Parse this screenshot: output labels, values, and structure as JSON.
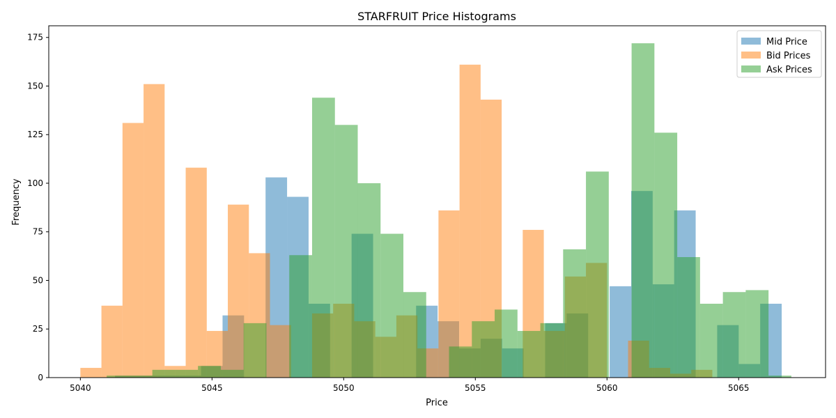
{
  "chart_data": {
    "type": "bar",
    "title": "STARFRUIT Price Histograms",
    "xlabel": "Price",
    "ylabel": "Frequency",
    "xlim": [
      5038.8,
      5068.3
    ],
    "ylim": [
      0,
      181
    ],
    "xticks": [
      5040,
      5045,
      5050,
      5055,
      5060,
      5065
    ],
    "yticks": [
      0,
      25,
      50,
      75,
      100,
      125,
      150,
      175
    ],
    "grid": false,
    "legend": "upper-right",
    "series": [
      {
        "name": "Mid Price",
        "color": "#1f77b4",
        "opacity": 0.5,
        "bin_start": 5040.5,
        "bin_width": 0.8167,
        "values": [
          0,
          1,
          1,
          1,
          1,
          6,
          32,
          0,
          103,
          93,
          38,
          0,
          74,
          0,
          0,
          37,
          29,
          15,
          20,
          15,
          0,
          28,
          33,
          0,
          47,
          96,
          48,
          86,
          0,
          27,
          7,
          38,
          0,
          0,
          0,
          4
        ]
      },
      {
        "name": "Bid Prices",
        "color": "#ff7f0e",
        "opacity": 0.5,
        "bin_start": 5040.0,
        "bin_width": 0.8,
        "values": [
          5,
          37,
          131,
          151,
          6,
          108,
          24,
          89,
          64,
          27,
          0,
          33,
          38,
          29,
          21,
          32,
          15,
          86,
          161,
          143,
          0,
          76,
          24,
          52,
          59,
          0,
          19,
          5,
          2,
          4,
          0
        ]
      },
      {
        "name": "Ask Prices",
        "color": "#2ca02c",
        "opacity": 0.5,
        "bin_start": 5041.0,
        "bin_width": 0.8667,
        "values": [
          1,
          1,
          4,
          4,
          6,
          4,
          28,
          0,
          63,
          144,
          130,
          100,
          74,
          44,
          0,
          16,
          29,
          35,
          24,
          28,
          66,
          106,
          0,
          172,
          126,
          62,
          38,
          44,
          45,
          1
        ]
      }
    ]
  }
}
